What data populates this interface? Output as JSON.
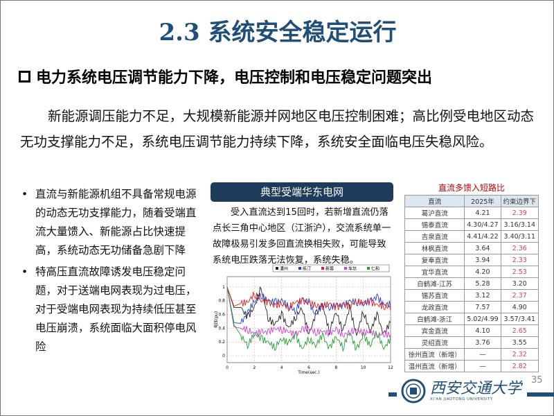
{
  "title": "2.3 系统安全稳定运行",
  "subtitle": "电力系统电压调节能力下降，电压控制和电压稳定问题突出",
  "paragraph": "新能源调压能力不足，大规模新能源并网地区电压控制困难；高比例受电地区动态无功支撑能力不足，系统电压调节能力持续下降，系统安全面临电压失稳风险。",
  "bullets": [
    "直流与新能源机组不具备常规电源的动态无功支撑能力，随着受端直流大量馈入、新能源占比快速提高，系统动态无功储备急剧下降",
    "特高压直流故障诱发电压稳定问题，对于送端电网表现为过电压，对于受端电网表现为持续低压甚至电压崩溃，系统面临大面积停电风险"
  ],
  "panel": {
    "header": "典型受端华东电网",
    "text": "受入直流达到15回时，若新增直流仍落点长三角中心地区（江浙沪），交流系统单一故障极易引发多回直流换相失败，可能导致系统电压跌落无法恢复，系统失稳。"
  },
  "chart_data": {
    "type": "line",
    "xlabel": "Time(sec.)",
    "ylabel": "电压(pu)",
    "xlim": [
      0,
      12
    ],
    "ylim": [
      -0.1,
      1.15
    ],
    "xticks": [
      "0",
      "2",
      "4",
      "6",
      "8",
      "10",
      "12"
    ],
    "yticks": [
      "0",
      "0.2",
      "0.4",
      "0.6",
      "0.8",
      "1"
    ],
    "legend_placement": "top",
    "x": [
      0,
      0.5,
      1,
      1.5,
      2,
      2.5,
      3,
      3.5,
      4,
      4.5,
      5,
      5.5,
      6,
      6.5,
      7,
      7.5,
      8,
      8.5,
      9,
      9.5,
      10,
      10.5,
      11,
      11.5,
      12
    ],
    "series": [
      {
        "name": "潘州",
        "color": "#222222",
        "values": [
          1,
          0.7,
          0.7,
          0.56,
          0.7,
          1.0,
          0.55,
          0.45,
          0.6,
          0.4,
          0.55,
          0.7,
          0.3,
          0.6,
          0.75,
          0.35,
          0.65,
          0.35,
          0.7,
          0.3,
          0.65,
          0.35,
          0.6,
          0.3,
          0.5
        ]
      },
      {
        "name": "练汀",
        "color": "#1f3fd0",
        "values": [
          1,
          0.48,
          0.47,
          0.62,
          0.8,
          0.88,
          0.8,
          0.78,
          0.8,
          0.72,
          0.65,
          0.82,
          0.78,
          0.58,
          0.75,
          0.7,
          0.74,
          0.72,
          0.8,
          0.78,
          0.76,
          0.8,
          0.85,
          0.75,
          0.75
        ]
      },
      {
        "name": "新蓉",
        "color": "#e02020",
        "values": [
          1,
          0.72,
          0.76,
          0.78,
          0.9,
          0.8,
          0.78,
          0.72,
          0.76,
          0.7,
          0.78,
          0.8,
          0.76,
          0.74,
          0.72,
          0.76,
          0.7,
          0.74,
          0.72,
          0.8,
          0.76,
          0.78,
          0.74,
          0.72,
          0.7
        ]
      },
      {
        "name": "车坊",
        "color": "#d040d0",
        "values": [
          1,
          0.42,
          0.4,
          0.38,
          0.32,
          0.35,
          0.34,
          0.4,
          0.38,
          0.36,
          0.3,
          0.38,
          0.4,
          0.34,
          0.36,
          0.32,
          0.38,
          0.3,
          0.34,
          0.38,
          0.33,
          0.35,
          0.3,
          0.32,
          0.3
        ]
      },
      {
        "name": "仁和",
        "color": "#20a030",
        "values": [
          1,
          0.45,
          0.3,
          0.15,
          0.32,
          0.25,
          0.2,
          0.12,
          0.25,
          0.18,
          0.3,
          0.1,
          0.25,
          0.15,
          0.3,
          0.1,
          0.28,
          0.12,
          0.35,
          0.08,
          0.3,
          0.15,
          0.35,
          0.1,
          0.25
        ]
      }
    ]
  },
  "table": {
    "title": "直流多馈入短路比",
    "headers": [
      "直流",
      "2025年",
      "约束边界下"
    ],
    "rows": [
      [
        "葛沪直流",
        "4.21",
        "2.39",
        true
      ],
      [
        "锡泰直流",
        "4.30/4.27",
        "3.16/3.14",
        false
      ],
      [
        "吉泉直流",
        "4.41/4.22",
        "3.40/3.11",
        false
      ],
      [
        "林枫直流",
        "3.64",
        "2.36",
        true
      ],
      [
        "复奉直流",
        "3.94",
        "2.33",
        true
      ],
      [
        "宜华直流",
        "4.20",
        "2.53",
        true
      ],
      [
        "白鹤滩-江苏",
        "5.28",
        "3.20",
        false
      ],
      [
        "锡苏直流",
        "3.12",
        "2.37",
        true
      ],
      [
        "龙政直流",
        "7.57",
        "4.90",
        false
      ],
      [
        "白鹤滩-浙江",
        "5.02/4.99",
        "3.57/3.41",
        false
      ],
      [
        "宾金直流",
        "4.10",
        "2.65",
        true
      ],
      [
        "灵绍直流",
        "3.76",
        "3.55",
        false
      ],
      [
        "徐州直流（新增）",
        "—",
        "2.32",
        true
      ],
      [
        "温州直流（新增）",
        "—",
        "2.82",
        true
      ]
    ]
  },
  "page_number": "35",
  "logo": {
    "name_cn": "西安交通大学",
    "name_en": "XI'AN JIAOTONG UNIVERSITY"
  },
  "colors": {
    "title": "#1f4e79",
    "panel_header": "#1f3b5c",
    "highlight": "#e0404a"
  }
}
